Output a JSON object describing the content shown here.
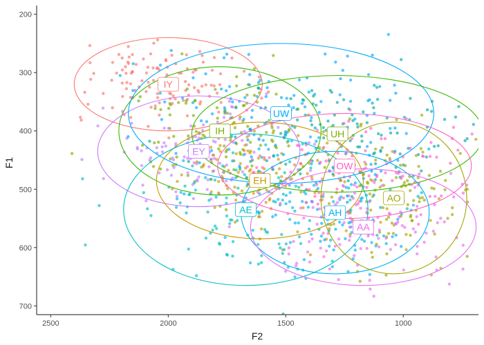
{
  "chart_data": {
    "type": "scatter",
    "title": "",
    "xlabel": "F2",
    "ylabel": "F1",
    "x_reversed": true,
    "y_reversed": true,
    "xlim": [
      2560,
      680
    ],
    "ylim": [
      185,
      715
    ],
    "x_ticks": [
      2500,
      2000,
      1500,
      1000
    ],
    "y_ticks": [
      200,
      300,
      400,
      500,
      600,
      700
    ],
    "grid": false,
    "legend": "none",
    "series": [
      {
        "name": "IY",
        "color": "#F8766D",
        "mean_f2": 2000,
        "mean_f1": 320,
        "ellipse": {
          "rx": 400,
          "ry": 80
        }
      },
      {
        "name": "IH",
        "color": "#7CAE00",
        "mean_f2": 1780,
        "mean_f1": 400,
        "ellipse": {
          "rx": 430,
          "ry": 110
        }
      },
      {
        "name": "EY",
        "color": "#C77CFF",
        "mean_f2": 1870,
        "mean_f1": 435,
        "ellipse": {
          "rx": 430,
          "ry": 95
        }
      },
      {
        "name": "EH",
        "color": "#CD9600",
        "mean_f2": 1610,
        "mean_f1": 485,
        "ellipse": {
          "rx": 440,
          "ry": 100
        }
      },
      {
        "name": "AE",
        "color": "#00BFC4",
        "mean_f2": 1670,
        "mean_f1": 535,
        "ellipse": {
          "rx": 520,
          "ry": 130
        }
      },
      {
        "name": "UW",
        "color": "#00A9FF",
        "mean_f2": 1520,
        "mean_f1": 370,
        "ellipse": {
          "rx": 650,
          "ry": 120
        }
      },
      {
        "name": "UH",
        "color": "#00A9A4",
        "mean_f2": 1280,
        "mean_f1": 405,
        "ellipse": {
          "rx": 620,
          "ry": 100
        }
      },
      {
        "name": "OW",
        "color": "#FF61C3",
        "mean_f2": 1250,
        "mean_f1": 460,
        "ellipse": {
          "rx": 540,
          "ry": 90
        }
      },
      {
        "name": "AH",
        "color": "#00B0F6",
        "mean_f2": 1290,
        "mean_f1": 540,
        "ellipse": {
          "rx": 400,
          "ry": 105
        }
      },
      {
        "name": "AO",
        "color": "#A3A500",
        "mean_f2": 1040,
        "mean_f1": 515,
        "ellipse": {
          "rx": 310,
          "ry": 130
        }
      },
      {
        "name": "AA",
        "color": "#E76BF3",
        "mean_f2": 1170,
        "mean_f1": 565,
        "ellipse": {
          "rx": 480,
          "ry": 100
        }
      }
    ],
    "series_label_colors": {
      "IY": "#F8766D",
      "IH": "#7CAE00",
      "EY": "#C77CFF",
      "EH": "#CD9600",
      "AE": "#00BFC4",
      "UW": "#00A9FF",
      "UH": "#7CAE00",
      "OW": "#FF61C3",
      "AH": "#00B0F6",
      "AO": "#A3A500",
      "AA": "#E76BF3"
    },
    "ellipse_colors": {
      "IY": "#F8766D",
      "IH": "#39B600",
      "EY": "#C77CFF",
      "EH": "#CD9600",
      "AE": "#00BFC4",
      "UW": "#00A9FF",
      "UH": "#39B600",
      "OW": "#FF61C3",
      "AH": "#00B0F6",
      "AO": "#A3A500",
      "AA": "#E76BF3"
    }
  }
}
